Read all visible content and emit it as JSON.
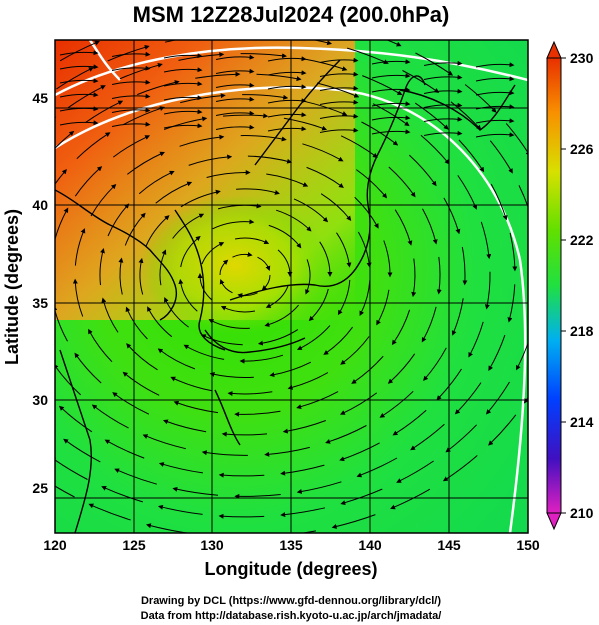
{
  "title": "MSM 12Z28Jul2024 (200.0hPa)",
  "x_axis": {
    "label": "Longitude (degrees)",
    "ticks": [
      "120",
      "125",
      "130",
      "135",
      "140",
      "145",
      "150"
    ],
    "range": [
      120,
      150
    ]
  },
  "y_axis": {
    "label": "Latitude  (degrees)",
    "ticks": [
      "25",
      "30",
      "35",
      "40",
      "45"
    ],
    "range": [
      22.4,
      47.6
    ]
  },
  "colorbar": {
    "ticks": [
      "210",
      "214",
      "218",
      "222",
      "226",
      "230"
    ],
    "range": [
      210,
      230
    ],
    "colors": [
      "#e020c0",
      "#4010c0",
      "#0050ff",
      "#00d0e0",
      "#20e040",
      "#70e000",
      "#d8e000",
      "#f8a000",
      "#e83000"
    ]
  },
  "credits": {
    "line1": "Drawing by DCL (https://www.gfd-dennou.org/library/dcl/)",
    "line2": "Data from http://database.rish.kyoto-u.ac.jp/arch/jmadata/"
  },
  "colors": {
    "frame": "#000000",
    "coast": "#000000",
    "grid": "#000000",
    "contour": "#ffffff"
  }
}
